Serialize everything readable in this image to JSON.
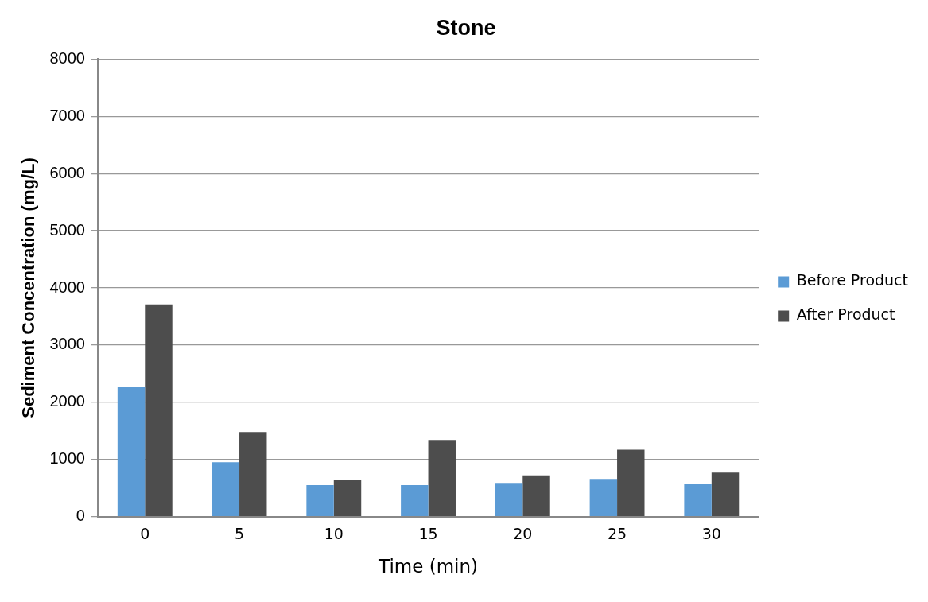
{
  "chart_data": {
    "type": "bar",
    "title": "Stone",
    "xlabel": "Time (min)",
    "ylabel": "Sediment Concentration (mg/L)",
    "categories": [
      "0",
      "5",
      "10",
      "15",
      "20",
      "25",
      "30"
    ],
    "series": [
      {
        "name": "Before Product",
        "color": "#5b9bd5",
        "values": [
          2260,
          950,
          550,
          550,
          590,
          660,
          580
        ]
      },
      {
        "name": "After Product",
        "color": "#4d4d4d",
        "values": [
          3710,
          1480,
          640,
          1340,
          720,
          1170,
          770
        ]
      }
    ],
    "ylim": [
      0,
      8000
    ],
    "yticks": [
      0,
      1000,
      2000,
      3000,
      4000,
      5000,
      6000,
      7000,
      8000
    ],
    "grid": "y",
    "legend": "right"
  }
}
